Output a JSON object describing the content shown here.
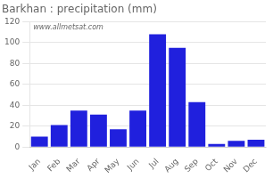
{
  "chart_data": {
    "type": "bar",
    "title": "Barkhan : precipitation (mm)",
    "categories": [
      "Jan",
      "Feb",
      "Mar",
      "Apr",
      "May",
      "Jun",
      "Jul",
      "Aug",
      "Sep",
      "Oct",
      "Nov",
      "Dec"
    ],
    "values": [
      10,
      21,
      35,
      31,
      17,
      35,
      108,
      95,
      43,
      3,
      6,
      7
    ],
    "color": "#2020dd",
    "ylim": [
      0,
      120
    ],
    "yticks": [
      0,
      20,
      40,
      60,
      80,
      100,
      120
    ],
    "grid": true,
    "annotations": [
      "www.allmetsat.com"
    ]
  }
}
